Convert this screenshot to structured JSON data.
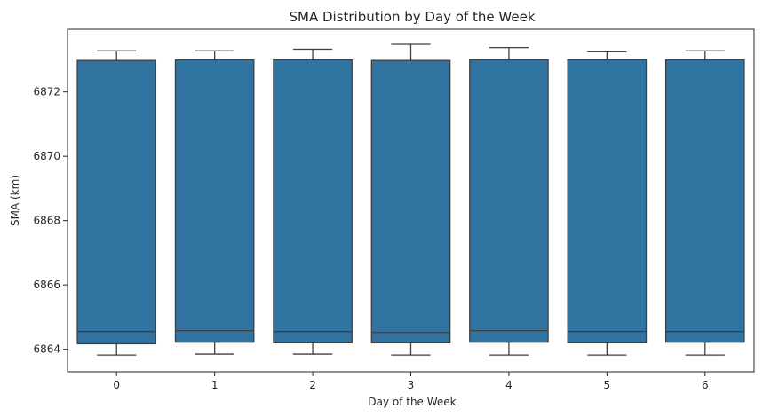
{
  "chart_data": {
    "type": "box",
    "title": "SMA Distribution by Day of the Week",
    "xlabel": "Day of the Week",
    "ylabel": "SMA (km)",
    "categories": [
      "0",
      "1",
      "2",
      "3",
      "4",
      "5",
      "6"
    ],
    "ylim": [
      6863.3,
      6873.95
    ],
    "yticks": [
      6864,
      6866,
      6868,
      6870,
      6872
    ],
    "ytick_labels": [
      "6864",
      "6866",
      "6868",
      "6870",
      "6872"
    ],
    "box_color": "#3274a1",
    "series": [
      {
        "category": "0",
        "whisker_low": 6863.82,
        "q1": 6864.17,
        "median": 6864.55,
        "q3": 6872.98,
        "whisker_high": 6873.28
      },
      {
        "category": "1",
        "whisker_low": 6863.85,
        "q1": 6864.22,
        "median": 6864.58,
        "q3": 6873.0,
        "whisker_high": 6873.28
      },
      {
        "category": "2",
        "whisker_low": 6863.85,
        "q1": 6864.2,
        "median": 6864.55,
        "q3": 6873.0,
        "whisker_high": 6873.33
      },
      {
        "category": "3",
        "whisker_low": 6863.82,
        "q1": 6864.2,
        "median": 6864.52,
        "q3": 6872.98,
        "whisker_high": 6873.48
      },
      {
        "category": "4",
        "whisker_low": 6863.82,
        "q1": 6864.22,
        "median": 6864.58,
        "q3": 6873.0,
        "whisker_high": 6873.38
      },
      {
        "category": "5",
        "whisker_low": 6863.82,
        "q1": 6864.2,
        "median": 6864.55,
        "q3": 6873.0,
        "whisker_high": 6873.25
      },
      {
        "category": "6",
        "whisker_low": 6863.82,
        "q1": 6864.22,
        "median": 6864.55,
        "q3": 6873.0,
        "whisker_high": 6873.28
      }
    ]
  }
}
